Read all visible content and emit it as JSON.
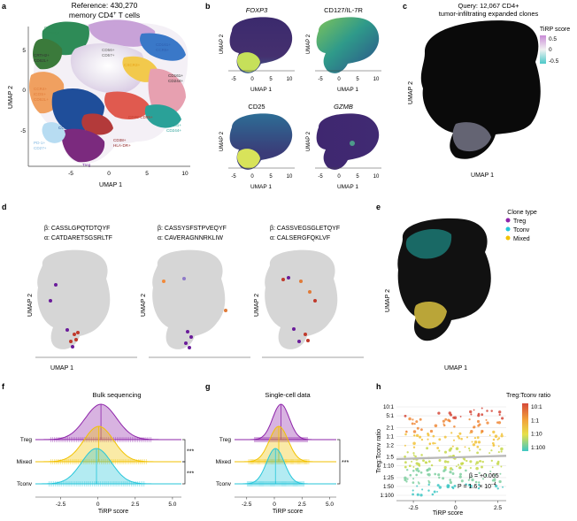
{
  "figure": {
    "panel_letters": [
      "a",
      "b",
      "c",
      "d",
      "e",
      "f",
      "g",
      "h"
    ]
  },
  "panel_a": {
    "title_line1": "Reference: 430,270",
    "title_line2": "memory CD4",
    "title_line2_sup": "+",
    "title_line2_end": " T cells",
    "xlabel": "UMAP 1",
    "ylabel": "UMAP 2",
    "xticks": [
      "-5",
      "0",
      "5",
      "10"
    ],
    "yticks": [
      "5",
      "0",
      "-5"
    ],
    "cluster_labels": [
      {
        "text": "CD161+CCR6+",
        "color": "#c8a2d8"
      },
      {
        "text": "CCR4+",
        "color": "#2e8b57"
      },
      {
        "text": "CRTH2+",
        "color": "#2e8b57"
      },
      {
        "text": "CRTH2+",
        "color": "#333333"
      },
      {
        "text": "CD62L+",
        "color": "#333333"
      },
      {
        "text": "CD161+",
        "color": "#2f5fb0"
      },
      {
        "text": "CCR6+",
        "color": "#2f5fb0"
      },
      {
        "text": "CD56+",
        "color": "#666666"
      },
      {
        "text": "CD57+",
        "color": "#666666"
      },
      {
        "text": "CXCR3+",
        "color": "#e8a317"
      },
      {
        "text": "CCR4+",
        "color": "#e07b39"
      },
      {
        "text": "ICOS+",
        "color": "#e07b39"
      },
      {
        "text": "CD62L+",
        "color": "#e07b39"
      },
      {
        "text": "CD161+",
        "color": "#333333"
      },
      {
        "text": "CD244+",
        "color": "#333333"
      },
      {
        "text": "CD28-CD95+",
        "color": "#c0392b"
      },
      {
        "text": "CD161+",
        "color": "#2aa198"
      },
      {
        "text": "CD244+",
        "color": "#2aa198"
      },
      {
        "text": "CCR4",
        "color": "#1f4e9a"
      },
      {
        "text": "CCR6+",
        "color": "#1f4e9a"
      },
      {
        "text": "CD38+",
        "color": "#8b1a1a"
      },
      {
        "text": "HLA-DR+",
        "color": "#8b1a1a"
      },
      {
        "text": "PD-1+",
        "color": "#7fb6e0"
      },
      {
        "text": "CD27+",
        "color": "#7fb6e0"
      },
      {
        "text": "Treg",
        "color": "#6a1b9a"
      }
    ]
  },
  "panel_b": {
    "titles": [
      "FOXP3",
      "CD127/IL-7R",
      "CD25",
      "GZMB"
    ],
    "xlabel": "UMAP 1",
    "ylabel": "UMAP 2",
    "xticks": [
      "-5",
      "0",
      "5",
      "10"
    ]
  },
  "panel_c": {
    "title_line1": "Query: 12,067 CD4+",
    "title_line2": "tumor-infiltrating expanded clones",
    "xlabel": "UMAP 1",
    "ylabel": "UMAP 2",
    "legend_title": "TiRP score",
    "legend_ticks": [
      "0.5",
      "0",
      "-0.5"
    ]
  },
  "panel_d": {
    "clones": [
      {
        "beta": "β: CASSLGPQTDTQYF",
        "alpha": "α: CATDARETSGSRLTF"
      },
      {
        "beta": "β: CASSYSFSTPVEQYF",
        "alpha": "α: CAVERAGNNRKLIW"
      },
      {
        "beta": "β: CASSVEGSGLETQYF",
        "alpha": "α: CALSERGFQKLVF"
      }
    ],
    "xlabel": "UMAP 1",
    "ylabel": "UMAP 2"
  },
  "panel_e": {
    "legend_title": "Clone type",
    "legend_items": [
      {
        "label": "Treg",
        "color": "#8e24aa"
      },
      {
        "label": "Tconv",
        "color": "#26c6da"
      },
      {
        "label": "Mixed",
        "color": "#f2c200"
      }
    ],
    "xlabel": "UMAP 1",
    "ylabel": "UMAP 2"
  },
  "chart_data": [
    {
      "type": "ridgeline",
      "panel": "f",
      "title": "Bulk sequencing",
      "xlabel": "TiRP score",
      "xlim": [
        -4.2,
        5.6
      ],
      "xticks": [
        -2.5,
        0,
        2.5,
        5.0
      ],
      "xtick_labels": [
        "-2.5",
        "0",
        "2.5",
        "5.0"
      ],
      "series": [
        {
          "name": "Treg",
          "color": "#8e24aa",
          "mean": 0.2,
          "sd": 1.05
        },
        {
          "name": "Mixed",
          "color": "#f2c200",
          "mean": 0.05,
          "sd": 1.0
        },
        {
          "name": "Tconv",
          "color": "#26c6da",
          "mean": -0.1,
          "sd": 1.0
        }
      ],
      "significance": [
        {
          "pair": [
            "Treg",
            "Mixed"
          ],
          "label": "***"
        },
        {
          "pair": [
            "Mixed",
            "Tconv"
          ],
          "label": "***"
        }
      ]
    },
    {
      "type": "ridgeline",
      "panel": "g",
      "title": "Single-cell data",
      "xlabel": "TiRP score",
      "xlim": [
        -3.6,
        5.6
      ],
      "xticks": [
        -2.5,
        0,
        2.5,
        5.0
      ],
      "xtick_labels": [
        "-2.5",
        "0",
        "2.5",
        "5.0"
      ],
      "series": [
        {
          "name": "Treg",
          "color": "#8e24aa",
          "mean": 0.6,
          "sd": 0.75
        },
        {
          "name": "Mixed",
          "color": "#f2c200",
          "mean": 0.4,
          "sd": 0.85
        },
        {
          "name": "Tconv",
          "color": "#26c6da",
          "mean": 0.1,
          "sd": 0.8
        }
      ],
      "significance": [
        {
          "pair": [
            "Treg",
            "Tconv"
          ],
          "label": "***"
        }
      ]
    },
    {
      "type": "scatter",
      "panel": "h",
      "title": "Treg:Tconv ratio",
      "xlabel": "TiRP score",
      "ylabel": "Treg:Tconv ratio",
      "xlim": [
        -3.5,
        3.0
      ],
      "xticks": [
        -2.5,
        0,
        2.5
      ],
      "xtick_labels": [
        "-2.5",
        "0",
        "2.5"
      ],
      "yticks_log": [
        10,
        5,
        2,
        1,
        0.5,
        0.2,
        0.1,
        0.04,
        0.02,
        0.01
      ],
      "ytick_labels": [
        "10:1",
        "5:1",
        "2:1",
        "1:1",
        "1:2",
        "1:5",
        "1:10",
        "1:25",
        "1:50",
        "1:100"
      ],
      "colorbar_ticks": [
        "10:1",
        "1:1",
        "1:10",
        "1:100"
      ],
      "regression": {
        "beta_label": "β = +0.065",
        "p_label": "P = 1.6 × 10",
        "p_exp": "−4"
      }
    }
  ]
}
